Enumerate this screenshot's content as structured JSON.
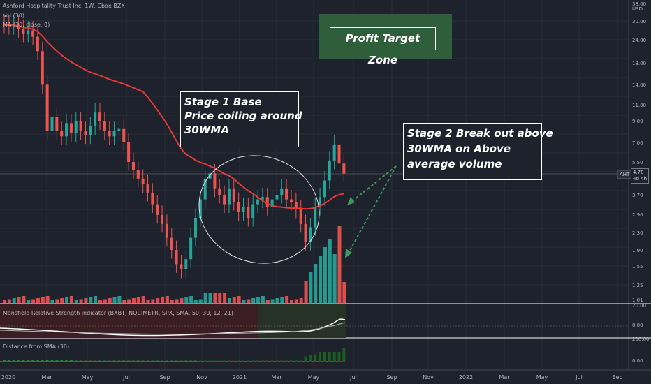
{
  "header": {
    "symbol_line": "Ashford Hospitality Trust Inc, 1W, Cboe BZX",
    "vol_line": "Vol (30)",
    "ma_line": "MA (30, close, 0)"
  },
  "panes": {
    "mansfield_label": "Mansfield Relative Strength indicator (BXBT, NQCIMETR, SPX, SMA, 50, 30, 12, 21)",
    "distance_label": "Distance from SMA (30)",
    "mansfield_ticks": [
      "20.00",
      "0.00"
    ],
    "distance_ticks": [
      "200.00",
      "0.00"
    ]
  },
  "annotations": {
    "profit_target": "Profit Target Zone",
    "stage1": [
      "Stage 1 Base",
      "Price coiling around",
      "30WMA"
    ],
    "stage2": [
      "Stage 2 Break out above",
      "30WMA on Above",
      "average volume"
    ]
  },
  "price_axis": {
    "currency": "USD",
    "ticks": [
      "38.00",
      "30.00",
      "24.00",
      "18.00",
      "14.00",
      "11.00",
      "9.00",
      "7.00",
      "5.50",
      "3.70",
      "2.90",
      "2.30",
      "1.90",
      "1.55",
      "1.25",
      "1.01"
    ],
    "symbol_tag": "AHT",
    "last_price": "4.78",
    "countdown": "4d 4h"
  },
  "time_axis": {
    "ticks": [
      "2020",
      "Mar",
      "May",
      "Jul",
      "Sep",
      "Nov",
      "2021",
      "Mar",
      "May",
      "Jul",
      "Sep",
      "Nov",
      "2022",
      "Mar",
      "May",
      "Jul",
      "Sep"
    ]
  },
  "colors": {
    "background": "#1e222d",
    "up": "#26a69a",
    "down": "#ef5350",
    "ma": "#e53935",
    "profit_zone": "#2e5e3a"
  },
  "chart_data": {
    "type": "candlestick",
    "series_ma_period": 30,
    "weekly_close_approx": [
      29,
      28.5,
      28.8,
      27.5,
      26,
      27,
      25,
      21,
      14,
      8,
      9.5,
      8,
      7.5,
      8.8,
      7.8,
      9,
      8,
      7.6,
      8.5,
      10,
      9,
      8,
      7.5,
      8,
      8.2,
      7,
      5.5,
      5,
      4.5,
      4.2,
      3.8,
      3.3,
      2.9,
      2.6,
      2.2,
      1.9,
      1.6,
      1.5,
      1.7,
      2.2,
      2.8,
      3.5,
      4.5,
      4.8,
      4,
      3.7,
      3.3,
      4,
      3.4,
      3,
      3.2,
      2.8,
      3.3,
      3.5,
      3.6,
      3.2,
      3.5,
      3.7,
      4,
      3.5,
      3.4,
      3.1,
      2.6,
      2.1,
      2.5,
      3.2,
      3.6,
      4.4,
      5.6,
      6.8,
      5.4,
      4.78
    ]
  }
}
